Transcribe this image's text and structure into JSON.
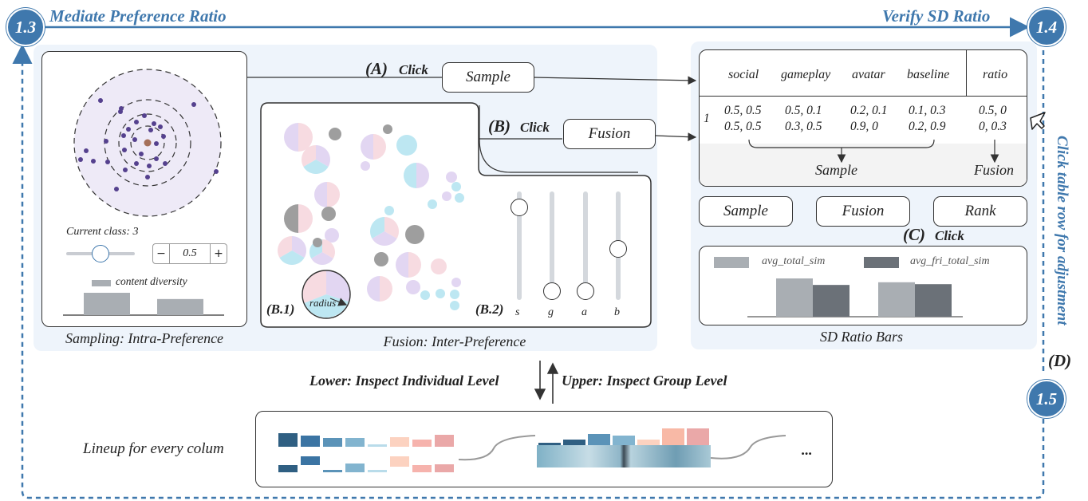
{
  "flow": {
    "badge_start": "1.3",
    "badge_end": "1.4",
    "badge_bottom": "1.5",
    "title_left": "Mediate Preference Ratio",
    "title_right": "Verify SD Ratio",
    "side_note": "Click table row for adjustment",
    "side_note_label": "(D)"
  },
  "sampling": {
    "current_class_label": "Current class: 3",
    "stepper_minus": "−",
    "stepper_value": "0.5",
    "stepper_plus": "+",
    "legend_label": "content diversity",
    "caption": "Sampling: Intra-Preference"
  },
  "actions": {
    "a_label": "(A)",
    "a_click": "Click",
    "sample_button": "Sample",
    "b_label": "(B)",
    "b_click": "Click",
    "fusion_button": "Fusion"
  },
  "fusion": {
    "b1_label": "(B.1)",
    "radius_label": "radius",
    "b2_label": "(B.2)",
    "slider_labels": [
      "s",
      "g",
      "a",
      "b"
    ],
    "caption": "Fusion: Inter-Preference"
  },
  "table": {
    "headers": [
      "social",
      "gameplay",
      "avatar",
      "baseline",
      "ratio"
    ],
    "row_index": "1",
    "row_line1": [
      "0.5, 0.5",
      "0.5, 0.1",
      "0.2, 0.1",
      "0.1, 0.3",
      "0.5, 0"
    ],
    "row_line2": [
      "0.5, 0.5",
      "0.3, 0.5",
      "0.9, 0",
      "0.2, 0.9",
      "0, 0.3"
    ],
    "sample_note": "Sample",
    "fusion_note": "Fusion"
  },
  "right_buttons": {
    "sample": "Sample",
    "fusion": "Fusion",
    "rank": "Rank",
    "c_label": "(C)",
    "c_click": "Click"
  },
  "sd_chart": {
    "caption": "SD Ratio Bars"
  },
  "chart_data": {
    "type": "bar",
    "title": "",
    "categories": [
      "",
      ""
    ],
    "series": [
      {
        "name": "avg_total_sim",
        "color": "#a9aeb3",
        "values": [
          1.0,
          0.9
        ]
      },
      {
        "name": "avg_fri_total_sim",
        "color": "#6b7178",
        "values": [
          0.83,
          0.85
        ]
      }
    ],
    "ylim": [
      0,
      1
    ],
    "grid": false,
    "legend": "top"
  },
  "sampling_chart": {
    "type": "bar",
    "series_name": "content diversity",
    "values": [
      1.0,
      0.72
    ],
    "color": "#a9aeb3"
  },
  "inspect": {
    "lower": "Lower: Inspect Individual Level",
    "upper": "Upper: Inspect Group Level"
  },
  "lineup": {
    "label": "Lineup for every colum",
    "ellipsis": "..."
  }
}
